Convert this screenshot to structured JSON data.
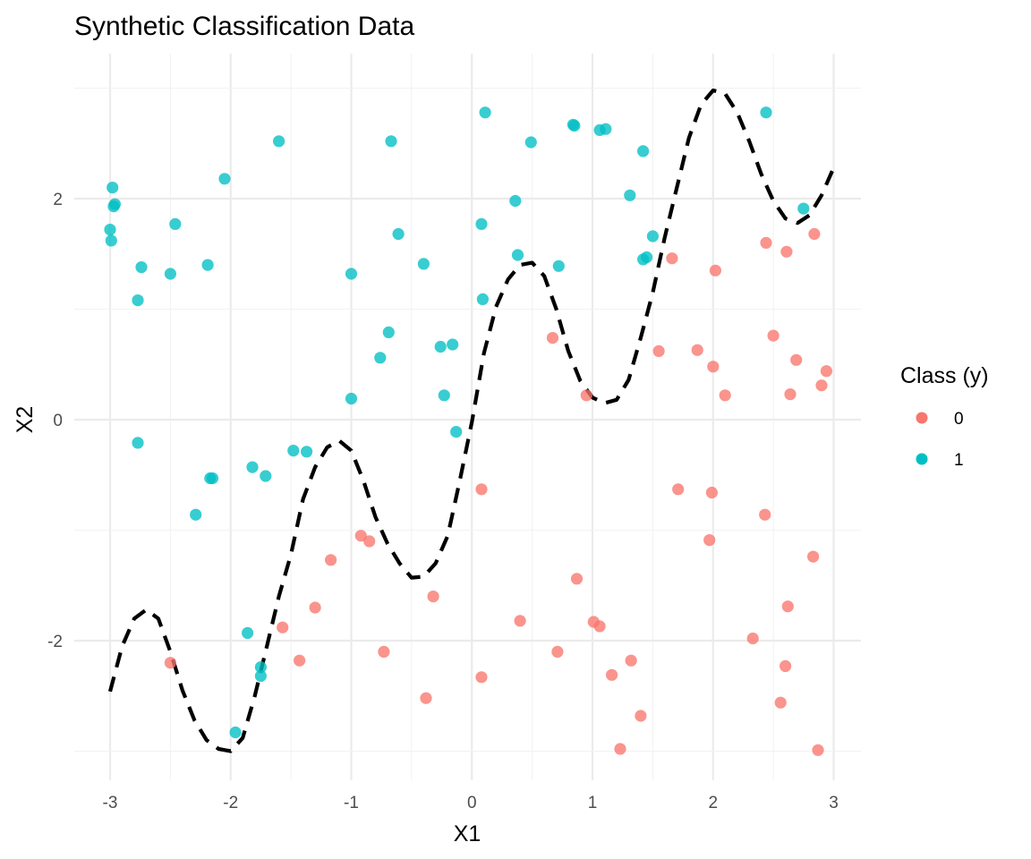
{
  "chart_data": {
    "type": "scatter",
    "title": "Synthetic Classification Data",
    "xlabel": "X1",
    "ylabel": "X2",
    "xlim": [
      -3.0,
      3.0
    ],
    "ylim": [
      -3.0,
      3.0
    ],
    "x_ticks": [
      -3,
      -2,
      -1,
      0,
      1,
      2,
      3
    ],
    "y_ticks": [
      -2,
      0,
      2
    ],
    "grid": true,
    "legend": {
      "title": "Class (y)",
      "position": "right",
      "entries": [
        {
          "label": "0",
          "color": "#F8766D"
        },
        {
          "label": "1",
          "color": "#00BFC4"
        }
      ]
    },
    "series": [
      {
        "name": "0",
        "color": "#F8766D",
        "points": [
          [
            -2.5,
            -2.2
          ],
          [
            -1.57,
            -1.88
          ],
          [
            -1.43,
            -2.18
          ],
          [
            -1.3,
            -1.7
          ],
          [
            -1.17,
            -1.27
          ],
          [
            -0.92,
            -1.05
          ],
          [
            -0.85,
            -1.1
          ],
          [
            -0.73,
            -2.1
          ],
          [
            -0.32,
            -1.6
          ],
          [
            -0.38,
            -2.52
          ],
          [
            0.08,
            -0.63
          ],
          [
            0.08,
            -2.33
          ],
          [
            0.4,
            -1.82
          ],
          [
            0.71,
            -2.1
          ],
          [
            0.67,
            0.74
          ],
          [
            0.87,
            -1.44
          ],
          [
            0.95,
            0.22
          ],
          [
            1.01,
            -1.83
          ],
          [
            1.06,
            -1.87
          ],
          [
            1.16,
            -2.31
          ],
          [
            1.23,
            -2.98
          ],
          [
            1.32,
            -2.18
          ],
          [
            1.4,
            -2.68
          ],
          [
            1.55,
            0.62
          ],
          [
            1.66,
            1.46
          ],
          [
            1.71,
            -0.63
          ],
          [
            1.87,
            0.63
          ],
          [
            1.97,
            -1.09
          ],
          [
            1.99,
            -0.66
          ],
          [
            2.0,
            0.48
          ],
          [
            2.02,
            1.35
          ],
          [
            2.1,
            0.22
          ],
          [
            2.33,
            -1.98
          ],
          [
            2.43,
            -0.86
          ],
          [
            2.44,
            1.6
          ],
          [
            2.5,
            0.76
          ],
          [
            2.56,
            -2.56
          ],
          [
            2.6,
            -2.23
          ],
          [
            2.61,
            1.52
          ],
          [
            2.62,
            -1.69
          ],
          [
            2.64,
            0.23
          ],
          [
            2.69,
            0.54
          ],
          [
            2.83,
            -1.24
          ],
          [
            2.84,
            1.68
          ],
          [
            2.87,
            -2.99
          ],
          [
            2.9,
            0.31
          ],
          [
            2.94,
            0.44
          ]
        ]
      },
      {
        "name": "1",
        "color": "#00BFC4",
        "points": [
          [
            -3.0,
            1.72
          ],
          [
            -2.99,
            1.62
          ],
          [
            -2.98,
            2.1
          ],
          [
            -2.97,
            1.93
          ],
          [
            -2.96,
            1.95
          ],
          [
            -2.77,
            1.08
          ],
          [
            -2.77,
            -0.21
          ],
          [
            -2.74,
            1.38
          ],
          [
            -2.5,
            1.32
          ],
          [
            -2.46,
            1.77
          ],
          [
            -2.29,
            -0.86
          ],
          [
            -2.19,
            1.4
          ],
          [
            -2.17,
            -0.53
          ],
          [
            -2.15,
            -0.53
          ],
          [
            -2.05,
            2.18
          ],
          [
            -1.96,
            -2.83
          ],
          [
            -1.86,
            -1.93
          ],
          [
            -1.82,
            -0.43
          ],
          [
            -1.75,
            -2.24
          ],
          [
            -1.75,
            -2.32
          ],
          [
            -1.71,
            -0.51
          ],
          [
            -1.6,
            2.52
          ],
          [
            -1.48,
            -0.28
          ],
          [
            -1.37,
            -0.29
          ],
          [
            -1.0,
            1.32
          ],
          [
            -1.0,
            0.19
          ],
          [
            -0.76,
            0.56
          ],
          [
            -0.69,
            0.79
          ],
          [
            -0.67,
            2.52
          ],
          [
            -0.61,
            1.68
          ],
          [
            -0.4,
            1.41
          ],
          [
            -0.26,
            0.66
          ],
          [
            -0.23,
            0.22
          ],
          [
            -0.16,
            0.68
          ],
          [
            -0.13,
            -0.11
          ],
          [
            0.08,
            1.77
          ],
          [
            0.09,
            1.09
          ],
          [
            0.11,
            2.78
          ],
          [
            0.36,
            1.98
          ],
          [
            0.38,
            1.49
          ],
          [
            0.49,
            2.51
          ],
          [
            0.72,
            1.39
          ],
          [
            0.84,
            2.67
          ],
          [
            0.85,
            2.66
          ],
          [
            1.06,
            2.62
          ],
          [
            1.11,
            2.63
          ],
          [
            1.31,
            2.03
          ],
          [
            1.42,
            2.43
          ],
          [
            1.42,
            1.45
          ],
          [
            1.45,
            1.47
          ],
          [
            1.5,
            1.66
          ],
          [
            2.44,
            2.78
          ],
          [
            2.75,
            1.91
          ]
        ]
      }
    ],
    "boundary": {
      "style": "dashed",
      "color": "#000000",
      "points": [
        [
          -3.0,
          -2.46
        ],
        [
          -2.9,
          -2.05
        ],
        [
          -2.8,
          -1.8
        ],
        [
          -2.7,
          -1.72
        ],
        [
          -2.6,
          -1.8
        ],
        [
          -2.5,
          -2.1
        ],
        [
          -2.4,
          -2.45
        ],
        [
          -2.3,
          -2.72
        ],
        [
          -2.2,
          -2.9
        ],
        [
          -2.1,
          -2.98
        ],
        [
          -2.0,
          -3.0
        ],
        [
          -1.9,
          -2.88
        ],
        [
          -1.8,
          -2.5
        ],
        [
          -1.7,
          -2.05
        ],
        [
          -1.6,
          -1.6
        ],
        [
          -1.5,
          -1.22
        ],
        [
          -1.4,
          -0.72
        ],
        [
          -1.3,
          -0.43
        ],
        [
          -1.2,
          -0.25
        ],
        [
          -1.1,
          -0.19
        ],
        [
          -1.0,
          -0.28
        ],
        [
          -0.9,
          -0.55
        ],
        [
          -0.8,
          -0.88
        ],
        [
          -0.7,
          -1.12
        ],
        [
          -0.6,
          -1.3
        ],
        [
          -0.5,
          -1.43
        ],
        [
          -0.4,
          -1.42
        ],
        [
          -0.3,
          -1.3
        ],
        [
          -0.2,
          -1.05
        ],
        [
          -0.1,
          -0.55
        ],
        [
          0.0,
          -0.02
        ],
        [
          0.1,
          0.6
        ],
        [
          0.2,
          1.02
        ],
        [
          0.3,
          1.27
        ],
        [
          0.4,
          1.4
        ],
        [
          0.5,
          1.42
        ],
        [
          0.6,
          1.3
        ],
        [
          0.7,
          1.0
        ],
        [
          0.8,
          0.62
        ],
        [
          0.9,
          0.35
        ],
        [
          1.0,
          0.2
        ],
        [
          1.1,
          0.15
        ],
        [
          1.2,
          0.18
        ],
        [
          1.3,
          0.36
        ],
        [
          1.4,
          0.74
        ],
        [
          1.5,
          1.15
        ],
        [
          1.6,
          1.65
        ],
        [
          1.7,
          2.1
        ],
        [
          1.8,
          2.55
        ],
        [
          1.9,
          2.85
        ],
        [
          2.0,
          2.98
        ],
        [
          2.1,
          2.95
        ],
        [
          2.2,
          2.78
        ],
        [
          2.3,
          2.52
        ],
        [
          2.4,
          2.22
        ],
        [
          2.5,
          1.98
        ],
        [
          2.6,
          1.82
        ],
        [
          2.7,
          1.78
        ],
        [
          2.8,
          1.85
        ],
        [
          2.9,
          2.03
        ],
        [
          3.0,
          2.28
        ]
      ]
    }
  }
}
